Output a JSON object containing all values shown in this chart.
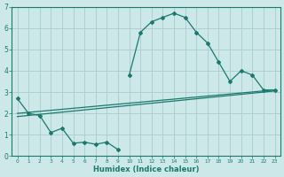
{
  "xlabel": "Humidex (Indice chaleur)",
  "ylabel": "",
  "bg_color": "#cce8e8",
  "grid_color": "#aacccc",
  "line_color": "#1a7a6e",
  "xlim": [
    -0.5,
    23.5
  ],
  "ylim": [
    0,
    7
  ],
  "xticks": [
    0,
    1,
    2,
    3,
    4,
    5,
    6,
    7,
    8,
    9,
    10,
    11,
    12,
    13,
    14,
    15,
    16,
    17,
    18,
    19,
    20,
    21,
    22,
    23
  ],
  "yticks": [
    0,
    1,
    2,
    3,
    4,
    5,
    6,
    7
  ],
  "line1_x": [
    0,
    1,
    2,
    3,
    4,
    5,
    6,
    7,
    8,
    9
  ],
  "line1_y": [
    2.7,
    2.0,
    1.9,
    1.1,
    1.3,
    0.6,
    0.65,
    0.55,
    0.65,
    0.3
  ],
  "line2_x": [
    10,
    11,
    12,
    13,
    14,
    15,
    16,
    17,
    18,
    19,
    20,
    21,
    22,
    23
  ],
  "line2_y": [
    3.8,
    5.8,
    6.3,
    6.5,
    6.7,
    6.5,
    5.8,
    5.3,
    4.4,
    3.5,
    4.0,
    3.8,
    3.1,
    3.1
  ],
  "line3_x": [
    0,
    23
  ],
  "line3_y": [
    2.0,
    3.1
  ],
  "line4_x": [
    0,
    23
  ],
  "line4_y": [
    1.85,
    3.05
  ]
}
